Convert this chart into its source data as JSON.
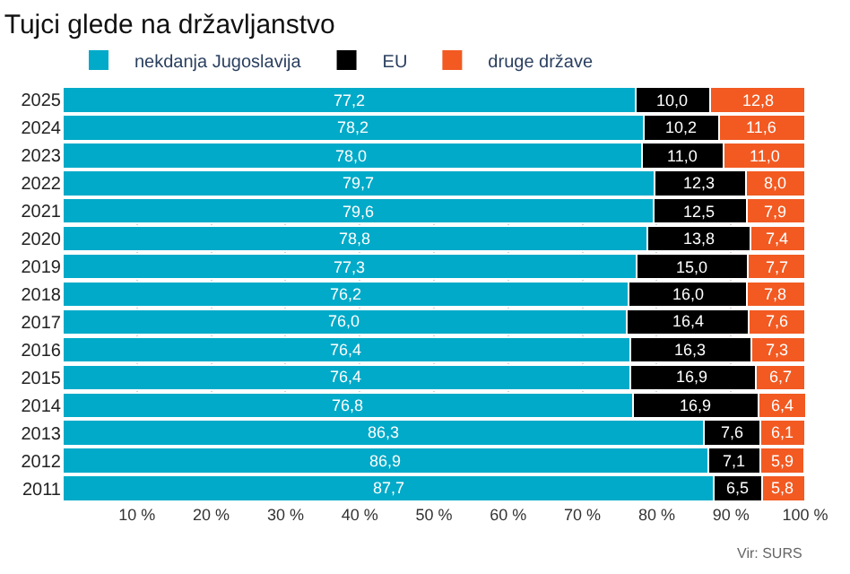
{
  "chart_data": {
    "type": "bar",
    "orientation": "horizontal",
    "stacked": true,
    "title": "Tujci glede na državljanstvo",
    "categories": [
      "2025",
      "2024",
      "2023",
      "2022",
      "2021",
      "2020",
      "2019",
      "2018",
      "2017",
      "2016",
      "2015",
      "2014",
      "2013",
      "2012",
      "2011"
    ],
    "series": [
      {
        "name": "nekdanja Jugoslavija",
        "color": "#00aac8",
        "values": [
          77.2,
          78.2,
          78.0,
          79.7,
          79.6,
          78.8,
          77.3,
          76.2,
          76.0,
          76.4,
          76.4,
          76.8,
          86.3,
          86.9,
          87.7
        ],
        "value_labels": [
          "77,2",
          "78,2",
          "78,0",
          "79,7",
          "79,6",
          "78,8",
          "77,3",
          "76,2",
          "76,0",
          "76,4",
          "76,4",
          "76,8",
          "86,3",
          "86,9",
          "87,7"
        ]
      },
      {
        "name": "EU",
        "color": "#000000",
        "values": [
          10.0,
          10.2,
          11.0,
          12.3,
          12.5,
          13.8,
          15.0,
          16.0,
          16.4,
          16.3,
          16.9,
          16.9,
          7.6,
          7.1,
          6.5
        ],
        "value_labels": [
          "10,0",
          "10,2",
          "11,0",
          "12,3",
          "12,5",
          "13,8",
          "15,0",
          "16,0",
          "16,4",
          "16,3",
          "16,9",
          "16,9",
          "7,6",
          "7,1",
          "6,5"
        ]
      },
      {
        "name": "druge države",
        "color": "#f25a22",
        "values": [
          12.8,
          11.6,
          11.0,
          8.0,
          7.9,
          7.4,
          7.7,
          7.8,
          7.6,
          7.3,
          6.7,
          6.4,
          6.1,
          5.9,
          5.8
        ],
        "value_labels": [
          "12,8",
          "11,6",
          "11,0",
          "8,0",
          "7,9",
          "7,4",
          "7,7",
          "7,8",
          "7,6",
          "7,3",
          "6,7",
          "6,4",
          "6,1",
          "5,9",
          "5,8"
        ]
      }
    ],
    "xlim": [
      0,
      100
    ],
    "xticks": [
      {
        "value": 10,
        "label": "10 %"
      },
      {
        "value": 20,
        "label": "20 %"
      },
      {
        "value": 30,
        "label": "30 %"
      },
      {
        "value": 40,
        "label": "40 %"
      },
      {
        "value": 50,
        "label": "50 %"
      },
      {
        "value": 60,
        "label": "60 %"
      },
      {
        "value": 70,
        "label": "70 %"
      },
      {
        "value": 80,
        "label": "80 %"
      },
      {
        "value": 90,
        "label": "90 %"
      },
      {
        "value": 100,
        "label": "100 %"
      }
    ],
    "grid": "x",
    "legend": "top left",
    "annotations": [
      "Vir: SURS"
    ]
  }
}
